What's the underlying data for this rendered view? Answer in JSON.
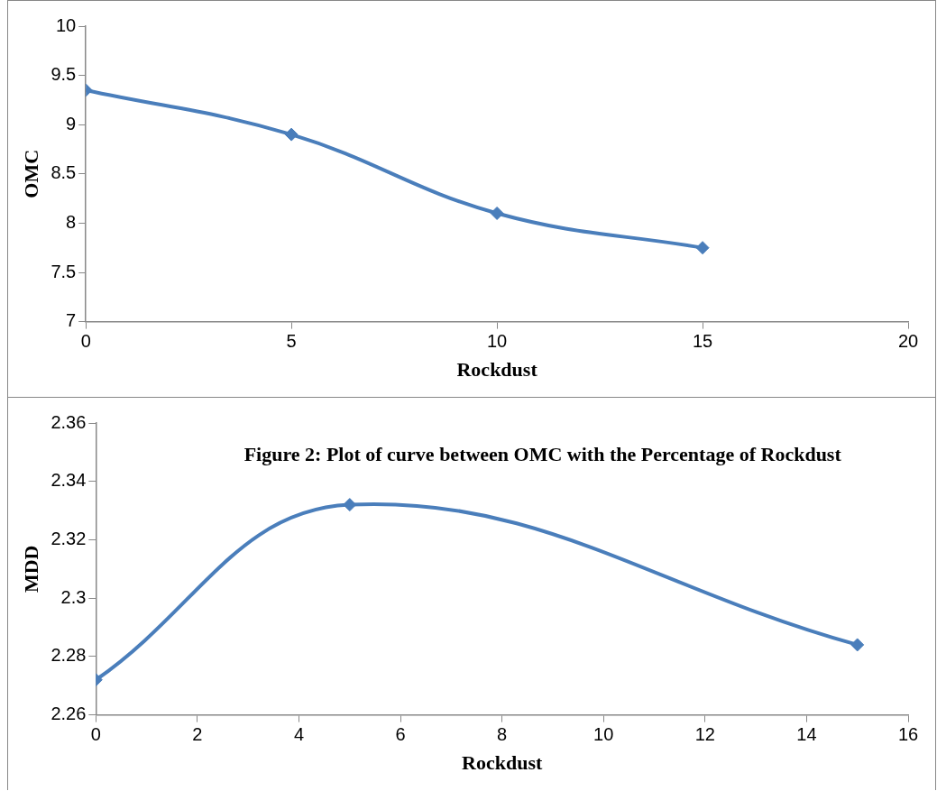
{
  "chart_data": [
    {
      "type": "line",
      "xlabel": "Rockdust",
      "ylabel": "OMC",
      "x": [
        0,
        5,
        10,
        15
      ],
      "series": [
        {
          "color": "#4a7ebb",
          "values": [
            9.35,
            8.9,
            8.1,
            7.75
          ]
        }
      ],
      "xlim": [
        0,
        20
      ],
      "xticks": [
        0,
        5,
        10,
        15,
        20
      ],
      "ylim": [
        7,
        10
      ],
      "yticks": [
        7,
        7.5,
        8,
        8.5,
        9,
        9.5,
        10
      ],
      "grid": false,
      "legend": false,
      "marker": "diamond",
      "line_style": "solid"
    },
    {
      "type": "line",
      "xlabel": "Rockdust",
      "ylabel": "MDD",
      "x": [
        0,
        5,
        10,
        15
      ],
      "series": [
        {
          "color": "#4a7ebb",
          "values": [
            2.272,
            2.332,
            null,
            2.284
          ]
        }
      ],
      "xlim": [
        0,
        16
      ],
      "xticks": [
        0,
        2,
        4,
        6,
        8,
        10,
        12,
        14,
        16
      ],
      "ylim": [
        2.26,
        2.36
      ],
      "yticks": [
        2.26,
        2.28,
        2.3,
        2.32,
        2.34,
        2.36
      ],
      "grid": false,
      "legend": false,
      "marker": "diamond",
      "line_style": "solid",
      "annotations": [
        "Figure 2: Plot of curve between OMC with the Percentage of Rockdust"
      ]
    }
  ]
}
